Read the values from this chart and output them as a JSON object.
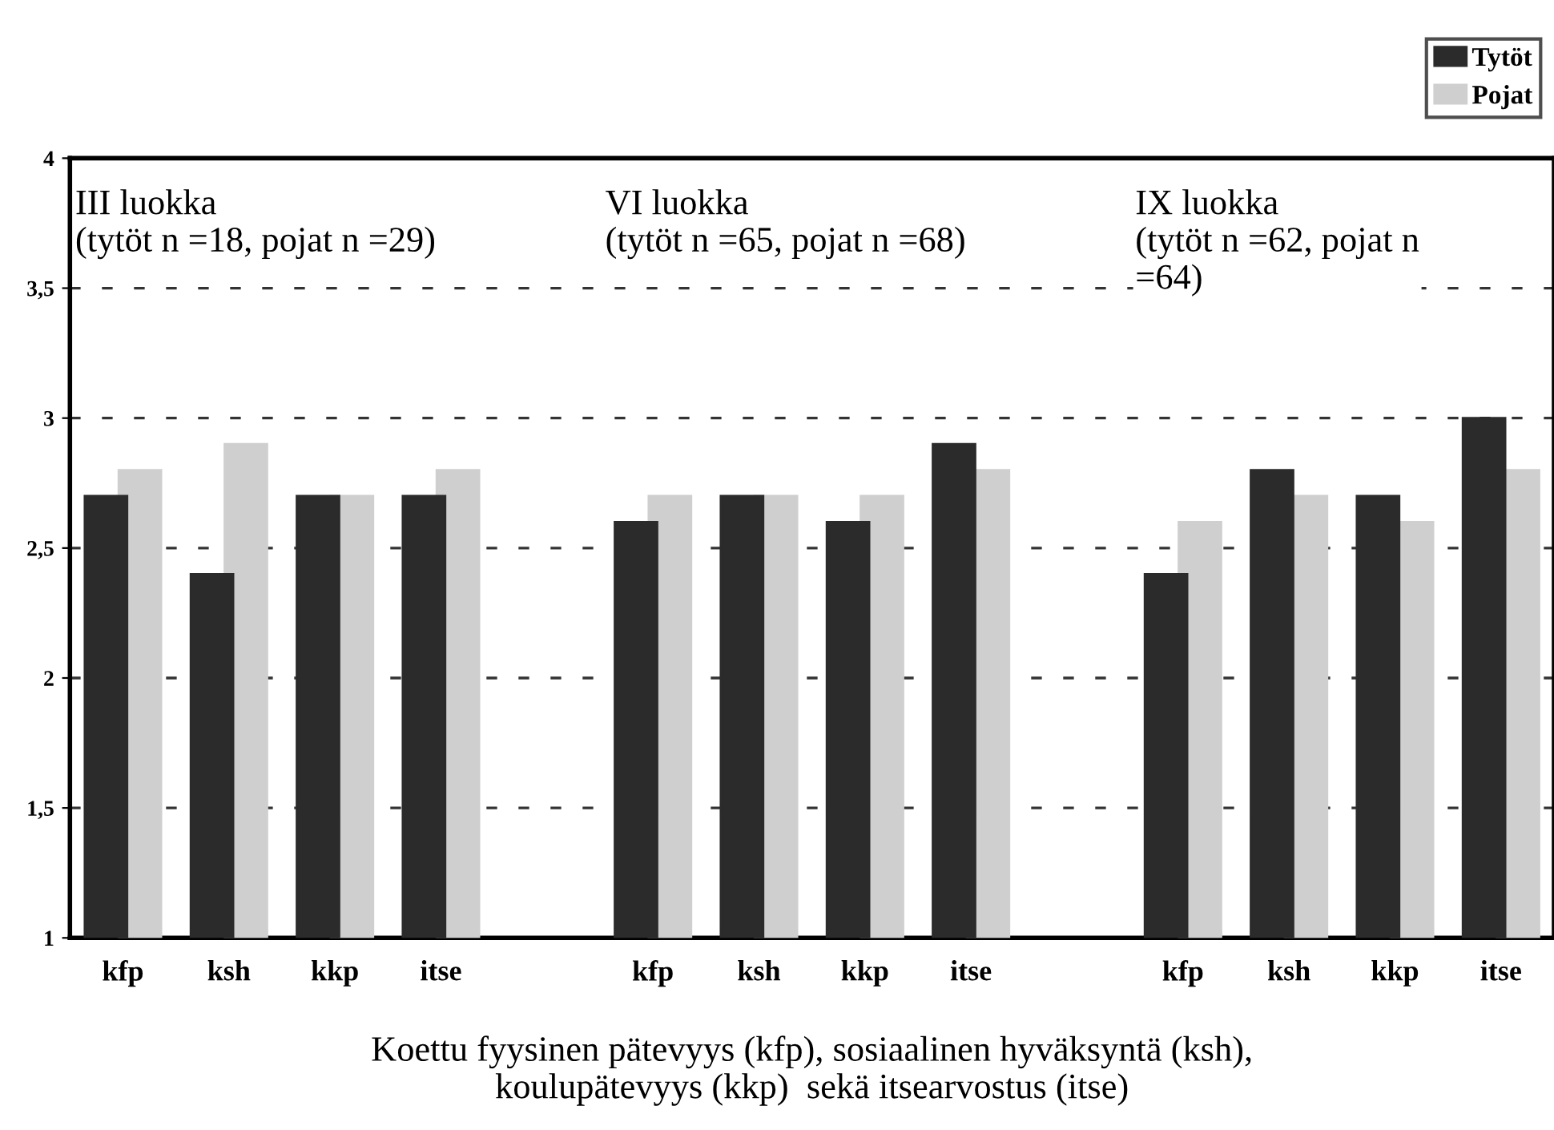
{
  "chart_data": {
    "type": "bar",
    "categories": [
      "kfp",
      "ksh",
      "kkp",
      "itse",
      null,
      "kfp",
      "ksh",
      "kkp",
      "itse",
      null,
      "kfp",
      "ksh",
      "kkp",
      "itse"
    ],
    "series": [
      {
        "name": "Tytöt",
        "color": "#2b2b2b",
        "values": [
          2.7,
          2.4,
          2.7,
          2.7,
          null,
          2.6,
          2.7,
          2.6,
          2.9,
          null,
          2.4,
          2.8,
          2.7,
          3.0
        ]
      },
      {
        "name": "Pojat",
        "color": "#cfcfcf",
        "values": [
          2.8,
          2.9,
          2.7,
          2.8,
          null,
          2.7,
          2.7,
          2.7,
          2.8,
          null,
          2.6,
          2.7,
          2.6,
          2.8
        ]
      }
    ],
    "ylim": [
      1,
      4
    ],
    "yticks": [
      1,
      {
        "value": 1.5,
        "label": "1,5"
      },
      2,
      {
        "value": 2.5,
        "label": "2,5"
      },
      3,
      {
        "value": 3.5,
        "label": "3,5"
      },
      4
    ],
    "grid": "y",
    "legend": "top right",
    "xlabel": "Koettu fyysinen pätevyys (kfp), sosiaalinen hyväksyntä (ksh),\nkoulupätevyys (kkp)  sekä itsearvostus (itse)",
    "annotations": [
      "III luokka\n(tytöt n =18, pojat n =29)",
      "VI luokka\n(tytöt n =65, pojat n =68)",
      "IX luokka\n(tytöt n =62, pojat n\n=64)"
    ]
  }
}
